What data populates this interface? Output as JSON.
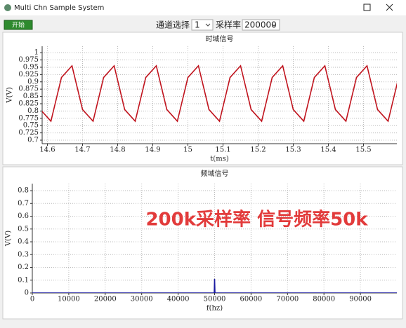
{
  "window": {
    "title": "Multi Chn Sample System"
  },
  "toolbar": {
    "start_button": "开始",
    "channel_label": "通道选择",
    "channel_value": "1",
    "rate_label": "采样率",
    "rate_value": "200000"
  },
  "chart_data": [
    {
      "type": "line",
      "title": "时域信号",
      "x_label": "t(ms)",
      "y_label": "V(V)",
      "x": [
        14.58,
        14.61,
        14.64,
        14.67,
        14.7,
        14.73,
        14.76,
        14.79,
        14.82,
        14.85,
        14.88,
        14.91,
        14.94,
        14.97,
        15.0,
        15.03,
        15.06,
        15.09,
        15.12,
        15.15,
        15.18,
        15.21,
        15.24,
        15.27,
        15.3,
        15.33,
        15.36,
        15.39,
        15.42,
        15.45,
        15.48,
        15.51,
        15.54,
        15.57,
        15.6
      ],
      "series": [
        {
          "color": "#c0141e",
          "values": [
            0.805,
            0.765,
            0.915,
            0.955,
            0.805,
            0.765,
            0.915,
            0.955,
            0.805,
            0.765,
            0.915,
            0.955,
            0.805,
            0.765,
            0.915,
            0.955,
            0.805,
            0.765,
            0.915,
            0.955,
            0.805,
            0.765,
            0.915,
            0.955,
            0.805,
            0.765,
            0.915,
            0.955,
            0.805,
            0.765,
            0.915,
            0.955,
            0.805,
            0.765,
            0.915
          ]
        }
      ],
      "xlim": [
        14.585,
        15.595
      ],
      "ylim": [
        0.688,
        1.022
      ],
      "xticks": [
        14.6,
        14.7,
        14.8,
        14.9,
        15,
        15.1,
        15.2,
        15.3,
        15.4,
        15.5
      ],
      "yticks": [
        0.7,
        0.725,
        0.75,
        0.775,
        0.8,
        0.825,
        0.85,
        0.875,
        0.9,
        0.925,
        0.95,
        0.975,
        1
      ],
      "grid": true
    },
    {
      "type": "line",
      "title": "频域信号",
      "x_label": "f(hz)",
      "y_label": "V(V)",
      "annotation": "200k采样率  信号频率50k",
      "x": [
        0,
        49900,
        50000,
        50100,
        100000
      ],
      "series": [
        {
          "color": "#1a1aa0",
          "values": [
            0,
            0,
            0.11,
            0,
            0
          ]
        }
      ],
      "xlim": [
        0,
        100000
      ],
      "ylim": [
        0,
        0.855
      ],
      "xticks": [
        0,
        10000,
        20000,
        30000,
        40000,
        50000,
        60000,
        70000,
        80000,
        90000
      ],
      "yticks": [
        0,
        0.1,
        0.2,
        0.3,
        0.4,
        0.5,
        0.6,
        0.7,
        0.8
      ],
      "grid": true
    }
  ]
}
